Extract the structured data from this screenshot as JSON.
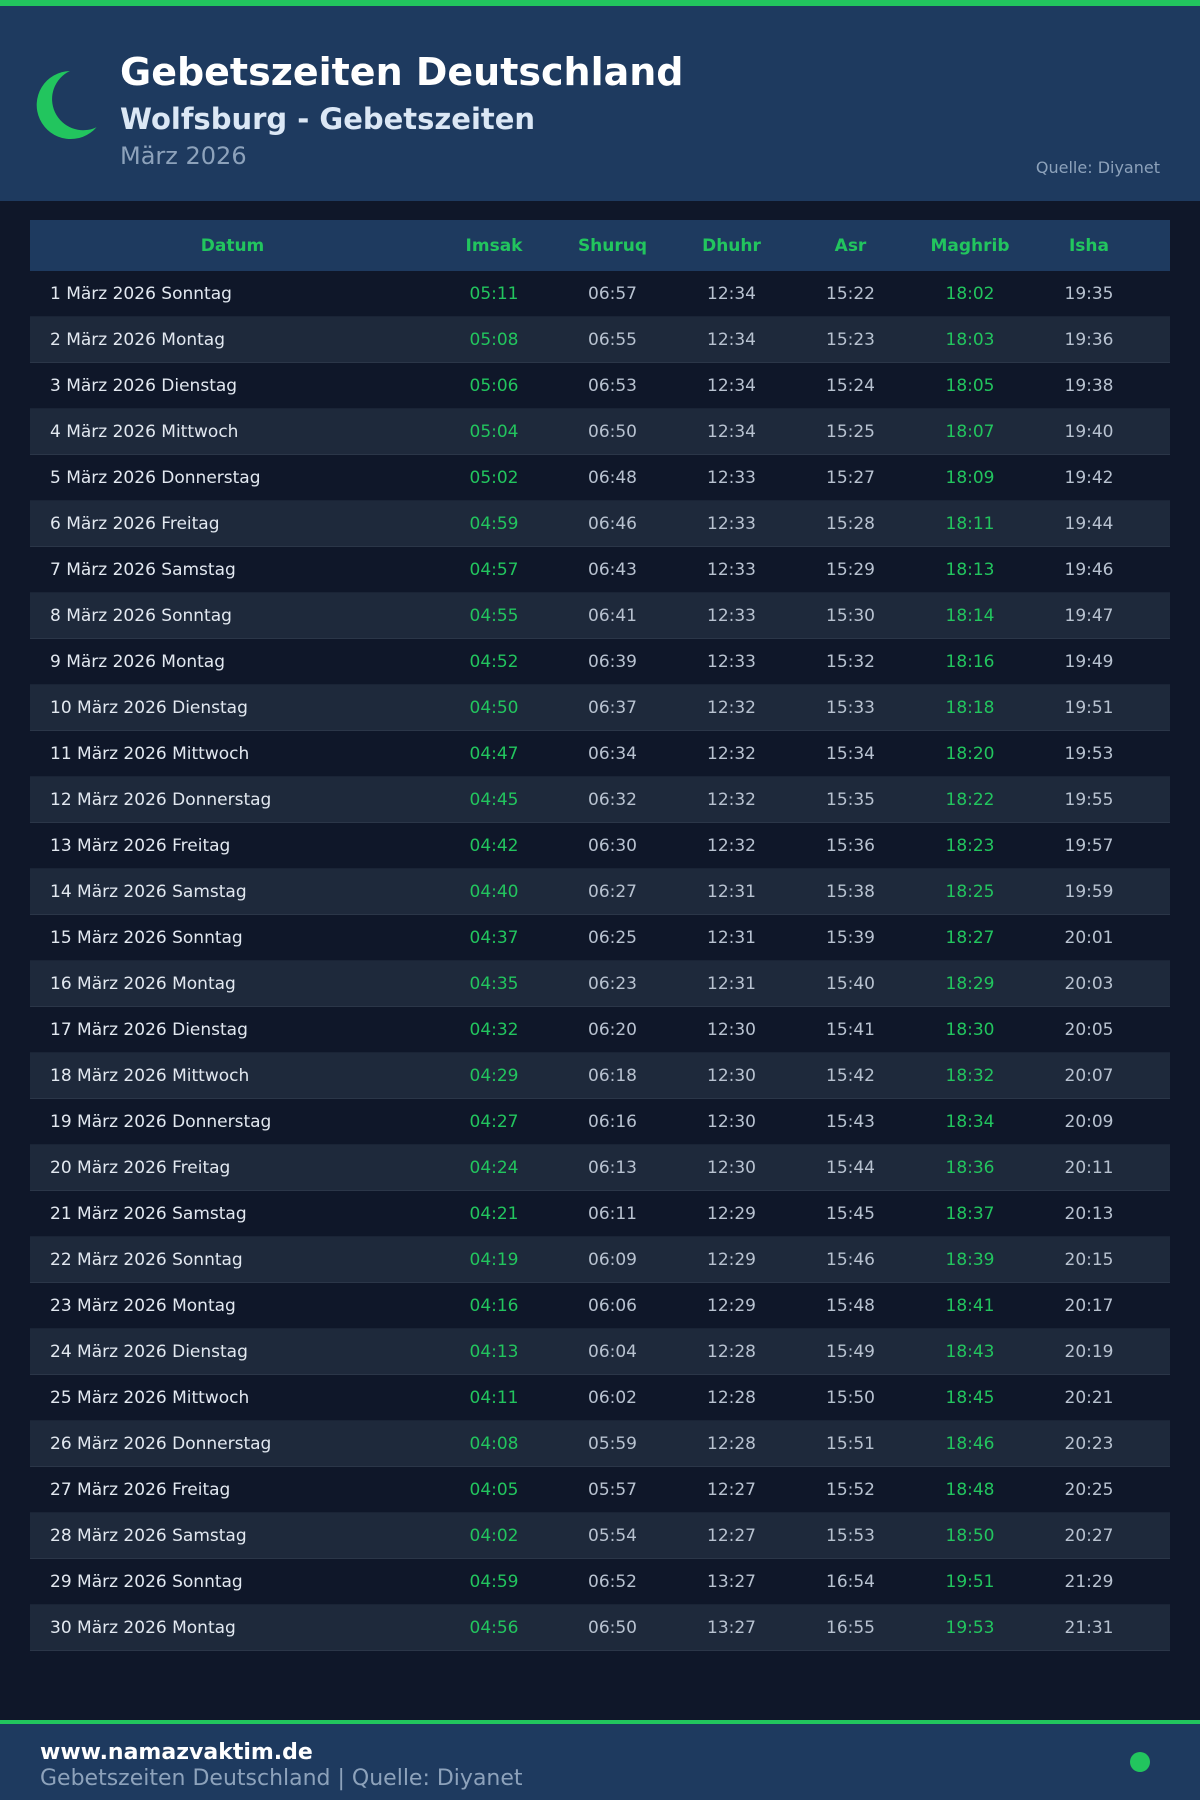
{
  "header": {
    "title": "Gebetszeiten Deutschland",
    "subtitle": "Wolfsburg - Gebetszeiten",
    "month": "März 2026",
    "source": "Quelle: Diyanet"
  },
  "colors": {
    "accent": "#22c55e",
    "header_bg": "#1e3a5f",
    "page_bg": "#0f1729"
  },
  "icons": {
    "logo": "crescent-moon-icon"
  },
  "table": {
    "columns": [
      "Datum",
      "Imsak",
      "Shuruq",
      "Dhuhr",
      "Asr",
      "Maghrib",
      "Isha"
    ],
    "rows": [
      [
        "1 März 2026 Sonntag",
        "05:11",
        "06:57",
        "12:34",
        "15:22",
        "18:02",
        "19:35"
      ],
      [
        "2 März 2026 Montag",
        "05:08",
        "06:55",
        "12:34",
        "15:23",
        "18:03",
        "19:36"
      ],
      [
        "3 März 2026 Dienstag",
        "05:06",
        "06:53",
        "12:34",
        "15:24",
        "18:05",
        "19:38"
      ],
      [
        "4 März 2026 Mittwoch",
        "05:04",
        "06:50",
        "12:34",
        "15:25",
        "18:07",
        "19:40"
      ],
      [
        "5 März 2026 Donnerstag",
        "05:02",
        "06:48",
        "12:33",
        "15:27",
        "18:09",
        "19:42"
      ],
      [
        "6 März 2026 Freitag",
        "04:59",
        "06:46",
        "12:33",
        "15:28",
        "18:11",
        "19:44"
      ],
      [
        "7 März 2026 Samstag",
        "04:57",
        "06:43",
        "12:33",
        "15:29",
        "18:13",
        "19:46"
      ],
      [
        "8 März 2026 Sonntag",
        "04:55",
        "06:41",
        "12:33",
        "15:30",
        "18:14",
        "19:47"
      ],
      [
        "9 März 2026 Montag",
        "04:52",
        "06:39",
        "12:33",
        "15:32",
        "18:16",
        "19:49"
      ],
      [
        "10 März 2026 Dienstag",
        "04:50",
        "06:37",
        "12:32",
        "15:33",
        "18:18",
        "19:51"
      ],
      [
        "11 März 2026 Mittwoch",
        "04:47",
        "06:34",
        "12:32",
        "15:34",
        "18:20",
        "19:53"
      ],
      [
        "12 März 2026 Donnerstag",
        "04:45",
        "06:32",
        "12:32",
        "15:35",
        "18:22",
        "19:55"
      ],
      [
        "13 März 2026 Freitag",
        "04:42",
        "06:30",
        "12:32",
        "15:36",
        "18:23",
        "19:57"
      ],
      [
        "14 März 2026 Samstag",
        "04:40",
        "06:27",
        "12:31",
        "15:38",
        "18:25",
        "19:59"
      ],
      [
        "15 März 2026 Sonntag",
        "04:37",
        "06:25",
        "12:31",
        "15:39",
        "18:27",
        "20:01"
      ],
      [
        "16 März 2026 Montag",
        "04:35",
        "06:23",
        "12:31",
        "15:40",
        "18:29",
        "20:03"
      ],
      [
        "17 März 2026 Dienstag",
        "04:32",
        "06:20",
        "12:30",
        "15:41",
        "18:30",
        "20:05"
      ],
      [
        "18 März 2026 Mittwoch",
        "04:29",
        "06:18",
        "12:30",
        "15:42",
        "18:32",
        "20:07"
      ],
      [
        "19 März 2026 Donnerstag",
        "04:27",
        "06:16",
        "12:30",
        "15:43",
        "18:34",
        "20:09"
      ],
      [
        "20 März 2026 Freitag",
        "04:24",
        "06:13",
        "12:30",
        "15:44",
        "18:36",
        "20:11"
      ],
      [
        "21 März 2026 Samstag",
        "04:21",
        "06:11",
        "12:29",
        "15:45",
        "18:37",
        "20:13"
      ],
      [
        "22 März 2026 Sonntag",
        "04:19",
        "06:09",
        "12:29",
        "15:46",
        "18:39",
        "20:15"
      ],
      [
        "23 März 2026 Montag",
        "04:16",
        "06:06",
        "12:29",
        "15:48",
        "18:41",
        "20:17"
      ],
      [
        "24 März 2026 Dienstag",
        "04:13",
        "06:04",
        "12:28",
        "15:49",
        "18:43",
        "20:19"
      ],
      [
        "25 März 2026 Mittwoch",
        "04:11",
        "06:02",
        "12:28",
        "15:50",
        "18:45",
        "20:21"
      ],
      [
        "26 März 2026 Donnerstag",
        "04:08",
        "05:59",
        "12:28",
        "15:51",
        "18:46",
        "20:23"
      ],
      [
        "27 März 2026 Freitag",
        "04:05",
        "05:57",
        "12:27",
        "15:52",
        "18:48",
        "20:25"
      ],
      [
        "28 März 2026 Samstag",
        "04:02",
        "05:54",
        "12:27",
        "15:53",
        "18:50",
        "20:27"
      ],
      [
        "29 März 2026 Sonntag",
        "04:59",
        "06:52",
        "13:27",
        "16:54",
        "19:51",
        "21:29"
      ],
      [
        "30 März 2026 Montag",
        "04:56",
        "06:50",
        "13:27",
        "16:55",
        "19:53",
        "21:31"
      ]
    ]
  },
  "footer": {
    "url": "www.namazvaktim.de",
    "text": "Gebetszeiten Deutschland | Quelle: Diyanet"
  }
}
